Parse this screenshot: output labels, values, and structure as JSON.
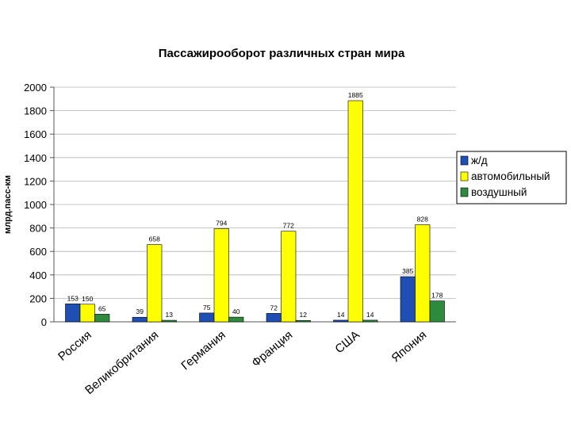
{
  "chart_data": {
    "type": "bar",
    "title": "Пассажирооборот различных стран мира",
    "ylabel": "млрд.пасс-км",
    "xlabel": "",
    "ylim": [
      0,
      2000
    ],
    "yticks": [
      0,
      200,
      400,
      600,
      800,
      1000,
      1200,
      1400,
      1600,
      1800,
      2000
    ],
    "grid": true,
    "legend_position": "right",
    "categories": [
      "Россия",
      "Великобритания",
      "Германия",
      "Франция",
      "США",
      "Япония"
    ],
    "series": [
      {
        "name": "ж/д",
        "color": "#1f4fb4",
        "values": [
          153,
          39,
          75,
          72,
          14,
          385
        ]
      },
      {
        "name": "автомобильный",
        "color": "#ffff00",
        "values": [
          150,
          658,
          794,
          772,
          1885,
          828
        ]
      },
      {
        "name": "воздушный",
        "color": "#2e8b3e",
        "values": [
          65,
          13,
          40,
          12,
          14,
          178
        ]
      }
    ]
  }
}
